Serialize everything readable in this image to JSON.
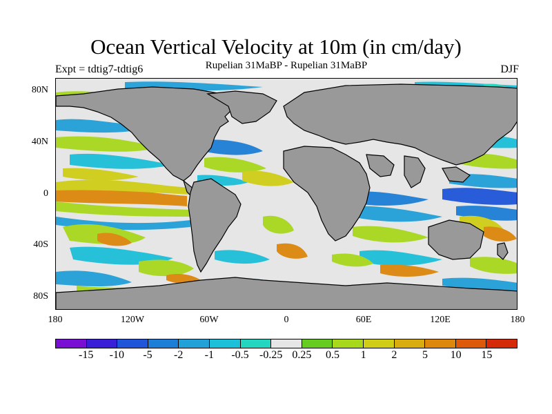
{
  "header": {
    "title": "Ocean Vertical Velocity at 10m (in cm/day)",
    "experiment": "Expt = tdtig7-tdtig6",
    "comparison": "Rupelian  31MaBP - Rupelian  31MaBP",
    "season": "DJF"
  },
  "axes": {
    "lat_labels": [
      "80N",
      "40N",
      "0",
      "40S",
      "80S"
    ],
    "lon_labels": [
      "180",
      "120W",
      "60W",
      "0",
      "60E",
      "120E",
      "180"
    ]
  },
  "colorbar": {
    "colors": [
      "#7a0fd4",
      "#3a1fd8",
      "#1f55d9",
      "#1c7ed6",
      "#22a0d8",
      "#1cc0d8",
      "#22d6c0",
      "#e6e6e6",
      "#66cc22",
      "#a8d81c",
      "#cfcd16",
      "#d9ac10",
      "#dd870c",
      "#dc5a0a",
      "#d42a08"
    ],
    "labels": [
      "-15",
      "-10",
      "-5",
      "-2",
      "-1",
      "-0.5",
      "-0.25",
      "0.25",
      "0.5",
      "1",
      "2",
      "5",
      "10",
      "15"
    ]
  },
  "colors": {
    "land": "#999999",
    "ocean_base": "#e6e6e6"
  }
}
